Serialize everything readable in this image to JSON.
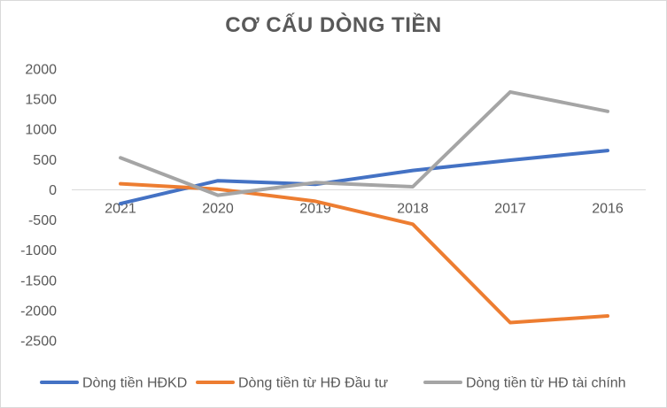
{
  "chart_data": {
    "type": "line",
    "title": "CƠ CẤU DÒNG TIỀN",
    "xlabel": "",
    "ylabel": "",
    "categories": [
      "2021",
      "2020",
      "2019",
      "2018",
      "2017",
      "2016"
    ],
    "ylim": [
      -2500,
      2000
    ],
    "yticks": [
      2000,
      1500,
      1000,
      500,
      0,
      -500,
      -1000,
      -1500,
      -2000,
      -2500
    ],
    "grid": false,
    "legend_position": "bottom",
    "series": [
      {
        "name": "Dòng tiền HĐKD",
        "color": "#4472C4",
        "values": [
          -230,
          150,
          90,
          320,
          490,
          650
        ]
      },
      {
        "name": "Dòng tiền từ HĐ Đầu tư",
        "color": "#ED7D31",
        "values": [
          100,
          10,
          -190,
          -570,
          -2200,
          -2090
        ]
      },
      {
        "name": "Dòng tiền từ HĐ tài chính",
        "color": "#A5A5A5",
        "values": [
          530,
          -90,
          120,
          50,
          1620,
          1300
        ]
      }
    ]
  }
}
